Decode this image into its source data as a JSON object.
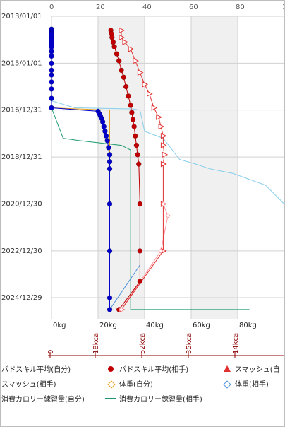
{
  "chart_data": {
    "type": "scatter",
    "y_axis_dates": [
      "2013/01/01",
      "2015/01/01",
      "2016/12/31",
      "2018/12/31",
      "2020/12/30",
      "2022/12/30",
      "2024/12/29"
    ],
    "top_axis_ticks": [
      "0",
      "20",
      "40",
      "60",
      "80",
      "10"
    ],
    "bottom_axis_ticks": [
      "0kg",
      "20kg",
      "40kg",
      "60kg",
      "80kg"
    ],
    "calorie_axis_ticks": [
      "0",
      "18kcal",
      "52kcal",
      "35kcal",
      "14kcal"
    ],
    "colors": {
      "badskill_self": "#0000c8",
      "badskill_opp": "#c00000",
      "smash_self": "#e03030",
      "smash_opp": "#ff9aa0",
      "weight_self": "#e8a020",
      "weight_opp": "#4a90e0",
      "cal_self": "#87ceeb",
      "cal_opp": "#1a9a6a",
      "shade": "#f0f0f0",
      "grid": "#d0d0d0",
      "cal_axis": "#8b0000"
    },
    "series": [
      {
        "name": "バドスキル平均(自分)",
        "key": "badskill_self",
        "marker": "dot",
        "points": [
          [
            0,
            2013.55
          ],
          [
            0,
            2013.6
          ],
          [
            0,
            2013.65
          ],
          [
            0,
            2013.7
          ],
          [
            0,
            2013.75
          ],
          [
            0,
            2013.8
          ],
          [
            0,
            2013.9
          ],
          [
            0,
            2014.0
          ],
          [
            0,
            2014.1
          ],
          [
            0,
            2014.2
          ],
          [
            0,
            2014.3
          ],
          [
            0,
            2014.5
          ],
          [
            0,
            2014.7
          ],
          [
            0,
            2015.0
          ],
          [
            0,
            2015.3
          ],
          [
            0,
            2015.5
          ],
          [
            0,
            2015.8
          ],
          [
            0,
            2016.1
          ],
          [
            0,
            2016.5
          ],
          [
            0,
            2016.9
          ],
          [
            20,
            2017.05
          ],
          [
            20.5,
            2017.15
          ],
          [
            21,
            2017.25
          ],
          [
            21.5,
            2017.35
          ],
          [
            22,
            2017.5
          ],
          [
            22.5,
            2017.7
          ],
          [
            23,
            2017.9
          ],
          [
            23.5,
            2018.1
          ],
          [
            24,
            2018.3
          ],
          [
            24.5,
            2018.6
          ],
          [
            25,
            2018.9
          ],
          [
            25,
            2019.2
          ],
          [
            25,
            2019.5
          ],
          [
            25,
            2021.0
          ],
          [
            25,
            2023.0
          ],
          [
            25,
            2025.0
          ],
          [
            25,
            2025.5
          ]
        ]
      },
      {
        "name": "バドスキル平均(相手)",
        "key": "badskill_opp",
        "marker": "dot",
        "points": [
          [
            25.5,
            2013.6
          ],
          [
            25.8,
            2013.75
          ],
          [
            26,
            2013.9
          ],
          [
            26.5,
            2014.1
          ],
          [
            27,
            2014.3
          ],
          [
            28,
            2014.6
          ],
          [
            29,
            2014.9
          ],
          [
            30,
            2015.3
          ],
          [
            31,
            2015.6
          ],
          [
            32,
            2016.0
          ],
          [
            33,
            2016.4
          ],
          [
            34,
            2016.8
          ],
          [
            34.5,
            2017.1
          ],
          [
            35,
            2017.4
          ],
          [
            35.5,
            2017.7
          ],
          [
            36,
            2018.1
          ],
          [
            36.5,
            2018.5
          ],
          [
            37,
            2018.9
          ],
          [
            37.5,
            2019.3
          ],
          [
            38,
            2021.0
          ],
          [
            38,
            2023.0
          ],
          [
            38,
            2024.3
          ],
          [
            29,
            2025.5
          ]
        ]
      },
      {
        "name": "スマッシュ(自分)",
        "key": "smash_self",
        "marker": "triangle",
        "points": [
          [
            30,
            2013.6
          ],
          [
            30,
            2013.9
          ],
          [
            31.5,
            2014.1
          ],
          [
            34,
            2014.4
          ],
          [
            36,
            2014.9
          ],
          [
            38,
            2015.4
          ],
          [
            40,
            2015.9
          ],
          [
            42,
            2016.3
          ],
          [
            44,
            2016.9
          ],
          [
            46,
            2017.3
          ],
          [
            47,
            2017.7
          ],
          [
            48,
            2018.1
          ],
          [
            48,
            2018.5
          ],
          [
            48.5,
            2018.9
          ],
          [
            48,
            2019.3
          ],
          [
            48,
            2021.0
          ],
          [
            48,
            2023.0
          ],
          [
            30,
            2025.5
          ]
        ]
      },
      {
        "name": "スマッシュ(相手)",
        "key": "smash_opp",
        "marker": "diamond",
        "points": [
          [
            30,
            2025.5
          ],
          [
            47,
            2023.0
          ],
          [
            50,
            2021.5
          ],
          [
            48,
            2021.0
          ]
        ]
      },
      {
        "name": "体重(自分)",
        "key": "weight_self",
        "marker": "line",
        "points": [
          [
            0,
            2016.9
          ],
          [
            25,
            2017.0
          ],
          [
            25,
            2025.5
          ]
        ]
      },
      {
        "name": "体重(相手)",
        "key": "weight_opp",
        "marker": "line",
        "points": [
          [
            38,
            2019.5
          ],
          [
            38,
            2023.6
          ],
          [
            25,
            2025.5
          ]
        ]
      },
      {
        "name": "消費カロリー練習量(自分)",
        "key": "cal_self",
        "marker": "line",
        "points": [
          [
            0,
            2016.6
          ],
          [
            10,
            2016.9
          ],
          [
            35,
            2016.95
          ],
          [
            38,
            2017.0
          ],
          [
            40,
            2017.9
          ],
          [
            48,
            2018.2
          ],
          [
            55,
            2019.1
          ],
          [
            62,
            2019.3
          ],
          [
            68,
            2019.5
          ],
          [
            78,
            2019.7
          ],
          [
            92,
            2020.2
          ],
          [
            100,
            2021.0
          ],
          [
            100,
            2025.0
          ]
        ]
      },
      {
        "name": "消費カロリー練習量(相手)",
        "key": "cal_opp",
        "marker": "line",
        "points": [
          [
            0,
            2016.9
          ],
          [
            5,
            2018.2
          ],
          [
            12,
            2018.3
          ],
          [
            30,
            2018.5
          ],
          [
            34,
            2018.7
          ],
          [
            34,
            2025.5
          ],
          [
            85,
            2025.5
          ]
        ]
      }
    ],
    "legend_rows": [
      [
        "バドスキル平均(自分)",
        "バドスキル平均(相手)",
        "スマッシュ(自"
      ],
      [
        "スマッシュ(相手)",
        "体重(自分)",
        "体重(相手)"
      ],
      [
        "消費カロリー練習量(自分)",
        "消費カロリー練習量(相手)"
      ]
    ]
  }
}
